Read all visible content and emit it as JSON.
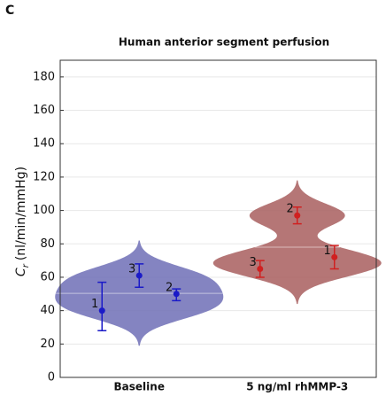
{
  "chart_data": {
    "type": "violin",
    "panel_label": "C",
    "title": "Human anterior segment perfusion",
    "ylabel": "C",
    "ylabel_subscript": "r",
    "ylabel_unit": "(nl/min/mmHg)",
    "categories": [
      "Baseline",
      "5 ng/ml rhMMP-3"
    ],
    "groups": [
      {
        "color": "#6e6eb6",
        "point_color": "#1a1ac8",
        "labels": [
          "1",
          "3",
          "2"
        ],
        "values": [
          40,
          61,
          50
        ],
        "lower": [
          28,
          54,
          46
        ],
        "upper": [
          57,
          68,
          53
        ]
      },
      {
        "color": "#a85e5e",
        "point_color": "#d02020",
        "labels": [
          "3",
          "2",
          "1"
        ],
        "values": [
          65,
          97,
          72
        ],
        "lower": [
          60,
          92,
          65
        ],
        "upper": [
          70,
          102,
          79
        ]
      }
    ],
    "ylim": [
      0,
      190
    ],
    "yticks": [
      0,
      20,
      40,
      60,
      80,
      100,
      120,
      140,
      160,
      180
    ],
    "grid": true
  }
}
